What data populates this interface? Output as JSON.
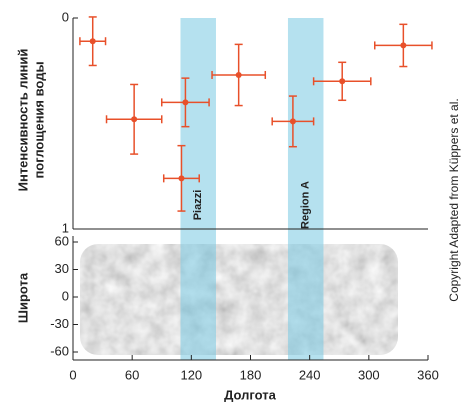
{
  "chart_data": [
    {
      "type": "scatter",
      "ylabel": [
        "Интенсивность линий",
        "поглощения воды"
      ],
      "color": "#e8502a",
      "x": [
        20,
        62,
        110,
        114,
        168,
        223,
        273,
        335
      ],
      "values": [
        0.11,
        0.48,
        0.76,
        0.4,
        0.27,
        0.49,
        0.3,
        0.13
      ],
      "xerr": [
        13,
        28,
        18,
        24,
        27,
        21,
        29,
        29
      ],
      "yerr": [
        0.115,
        0.165,
        0.155,
        0.115,
        0.145,
        0.12,
        0.09,
        0.1
      ],
      "xlim": [
        0,
        360
      ],
      "ylim": [
        0,
        1
      ],
      "yticks": [
        0,
        1
      ],
      "y_inverted": true
    },
    {
      "type": "map",
      "ylabel": "Широта",
      "xlabel": "Долгота",
      "xlim": [
        0,
        360
      ],
      "xticks": [
        0,
        60,
        120,
        180,
        240,
        300,
        360
      ],
      "ylim": [
        -60,
        60
      ],
      "yticks": [
        60,
        30,
        0,
        -30,
        -60
      ],
      "regions": [
        {
          "label": "Piazzi",
          "range": [
            109,
            145
          ]
        },
        {
          "label": "Region A",
          "range": [
            218,
            254
          ]
        }
      ]
    }
  ],
  "copyright": "Copyright Adapted from Küppers et al."
}
